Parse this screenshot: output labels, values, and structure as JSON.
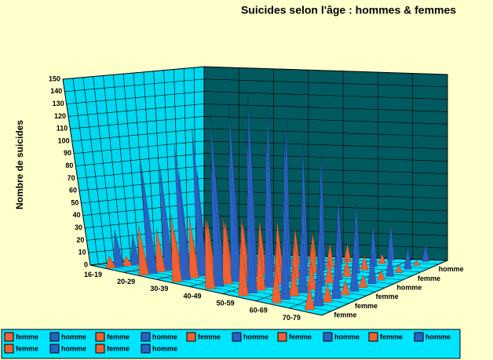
{
  "chart_data": {
    "type": "cone3d",
    "title": "Suicides selon l'âge : hommes & femmes",
    "y_label": "Nombre de suicides",
    "categories": [
      "16-19",
      "20-29",
      "30-39",
      "40-49",
      "50-59",
      "60-69",
      "70-79"
    ],
    "depth_labels": [
      "femme",
      "femme",
      "femme",
      "homme",
      "femme",
      "homme"
    ],
    "ylim": [
      0,
      150
    ],
    "yticks": [
      0,
      10,
      20,
      30,
      40,
      50,
      60,
      70,
      80,
      90,
      100,
      110,
      120,
      130,
      140,
      150
    ],
    "grid": true,
    "series": [
      {
        "name": "femme",
        "color": "#f06030",
        "values": [
          10,
          40,
          55,
          60,
          45,
          30,
          20
        ]
      },
      {
        "name": "homme",
        "color": "#2a62c4",
        "values": [
          30,
          90,
          110,
          100,
          85,
          60,
          40
        ]
      },
      {
        "name": "femme",
        "color": "#f06030",
        "values": [
          8,
          35,
          50,
          55,
          40,
          25,
          15
        ]
      },
      {
        "name": "homme",
        "color": "#2a62c4",
        "values": [
          25,
          85,
          120,
          110,
          80,
          55,
          35
        ]
      },
      {
        "name": "femme",
        "color": "#f06030",
        "values": [
          6,
          30,
          45,
          50,
          35,
          22,
          12
        ]
      },
      {
        "name": "homme",
        "color": "#2a62c4",
        "values": [
          20,
          80,
          125,
          115,
          75,
          50,
          30
        ]
      },
      {
        "name": "femme",
        "color": "#f06030",
        "values": [
          5,
          25,
          40,
          45,
          30,
          18,
          10
        ]
      },
      {
        "name": "homme",
        "color": "#2a62c4",
        "values": [
          18,
          75,
          130,
          110,
          70,
          45,
          25
        ]
      },
      {
        "name": "femme",
        "color": "#f06030",
        "values": [
          4,
          20,
          35,
          40,
          25,
          15,
          8
        ]
      },
      {
        "name": "homme",
        "color": "#2a62c4",
        "values": [
          15,
          70,
          135,
          105,
          65,
          40,
          20
        ]
      },
      {
        "name": "femme",
        "color": "#f06030",
        "values": [
          3,
          15,
          28,
          30,
          20,
          12,
          6
        ]
      },
      {
        "name": "homme",
        "color": "#2a62c4",
        "values": [
          12,
          60,
          125,
          95,
          55,
          35,
          18
        ]
      },
      {
        "name": "femme",
        "color": "#f06030",
        "values": [
          2,
          10,
          20,
          22,
          15,
          8,
          4
        ]
      },
      {
        "name": "homme",
        "color": "#2a62c4",
        "values": [
          10,
          50,
          110,
          85,
          45,
          30,
          15
        ]
      }
    ]
  }
}
